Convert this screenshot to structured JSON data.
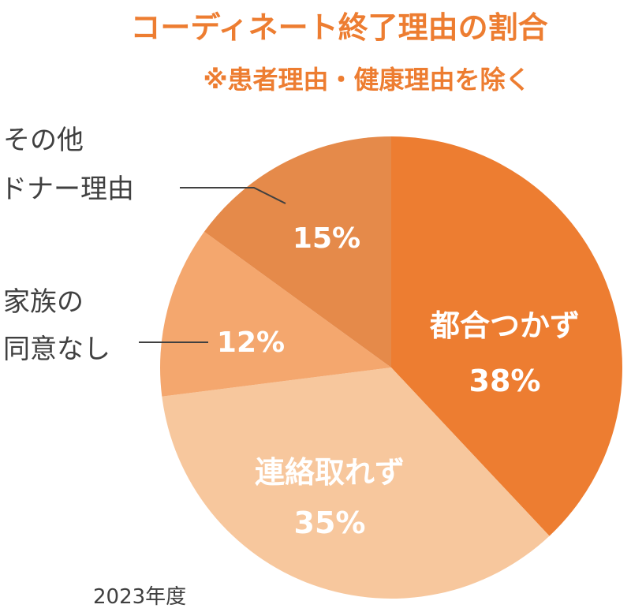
{
  "chart_data": {
    "type": "pie",
    "title": "コーディネート終了理由の割合",
    "subtitle": "※患者理由・健康理由を除く",
    "footnote": "2023年度",
    "slices": [
      {
        "label": "都合つかず",
        "value": 38,
        "value_text": "38%",
        "color": "#ed7d31"
      },
      {
        "label": "連絡取れず",
        "value": 35,
        "value_text": "35%",
        "color": "#f7c79d"
      },
      {
        "label": "家族の同意なし",
        "label_lines": [
          "家族の",
          "同意なし"
        ],
        "value": 12,
        "value_text": "12%",
        "color": "#f4a76e"
      },
      {
        "label": "その他ドナー理由",
        "label_lines": [
          "その他",
          "ドナー理由"
        ],
        "value": 15,
        "value_text": "15%",
        "color": "#e58a4a"
      }
    ]
  }
}
